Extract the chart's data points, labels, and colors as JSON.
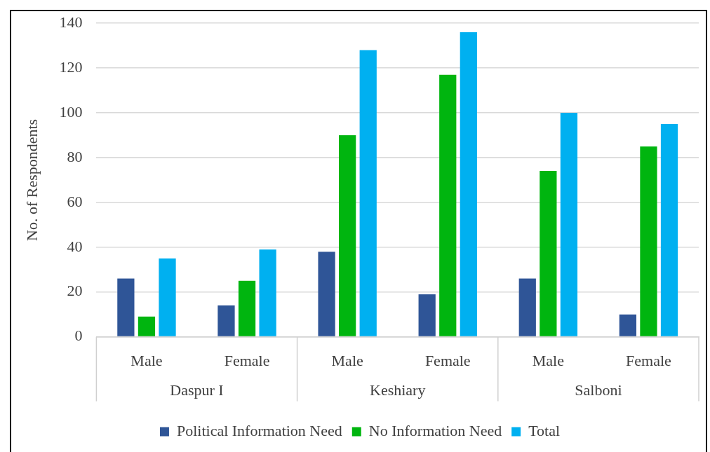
{
  "chart_data": {
    "type": "bar",
    "ylabel": "No. of Respondents",
    "categories": [
      "Male",
      "Female",
      "Male",
      "Female",
      "Male",
      "Female"
    ],
    "annotations": [
      "Daspur I",
      "Keshiary",
      "Salboni"
    ],
    "series": [
      {
        "name": "Political Information Need",
        "color": "#2f5597",
        "values": [
          26,
          14,
          38,
          19,
          26,
          10
        ]
      },
      {
        "name": "No Information Need",
        "color": "#00b50f",
        "values": [
          9,
          25,
          90,
          117,
          74,
          85
        ]
      },
      {
        "name": "Total",
        "color": "#00b0f0",
        "values": [
          35,
          39,
          128,
          136,
          100,
          95
        ]
      }
    ],
    "ylim": [
      0,
      140
    ],
    "yticks": [
      0,
      20,
      40,
      60,
      80,
      100,
      120,
      140
    ],
    "grid": "y",
    "legend": "bottom"
  }
}
